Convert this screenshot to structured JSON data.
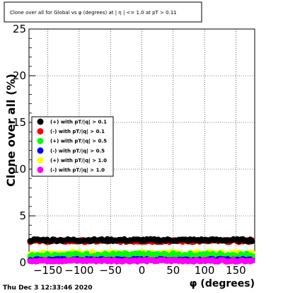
{
  "title": "Clone  over all for Global vs φ (degrees) at | η | <= 1.0 at pT > 0.11",
  "footer": "Thu Dec  3 12:33:46 2020",
  "chart_data": {
    "type": "scatter",
    "xlabel": "φ (degrees)",
    "ylabel": "Clone  over all (%)",
    "xlim": [
      -180,
      180
    ],
    "ylim": [
      0,
      25
    ],
    "xticks": [
      -150,
      -100,
      -50,
      0,
      50,
      100,
      150
    ],
    "xtick_labels": [
      "−150",
      "−100",
      "−50",
      "0",
      "50",
      "100",
      "150"
    ],
    "yticks": [
      0,
      5,
      10,
      15,
      20,
      25
    ],
    "ytick_labels": [
      "0",
      "5",
      "10",
      "15",
      "20",
      "25"
    ],
    "grid": true,
    "legend_position": "left-middle",
    "series": [
      {
        "name": "(+) with pT/|q| > 0.1",
        "color": "#000000",
        "level": 2.4,
        "spread": 0.12
      },
      {
        "name": "(-) with pT/|q| > 0.1",
        "color": "#ff0000",
        "level": 2.3,
        "spread": 0.12
      },
      {
        "name": "(+) with pT/|q| > 0.5",
        "color": "#00ff00",
        "level": 0.8,
        "spread": 0.2
      },
      {
        "name": "(-) with pT/|q| > 0.5",
        "color": "#0000ff",
        "level": 0.3,
        "spread": 0.1
      },
      {
        "name": "(+) with pT/|q| > 1.0",
        "color": "#ffff00",
        "level": 0.9,
        "spread": 0.25
      },
      {
        "name": "(-) with pT/|q| > 1.0",
        "color": "#ff00ff",
        "level": 0.2,
        "spread": 0.1
      }
    ]
  }
}
